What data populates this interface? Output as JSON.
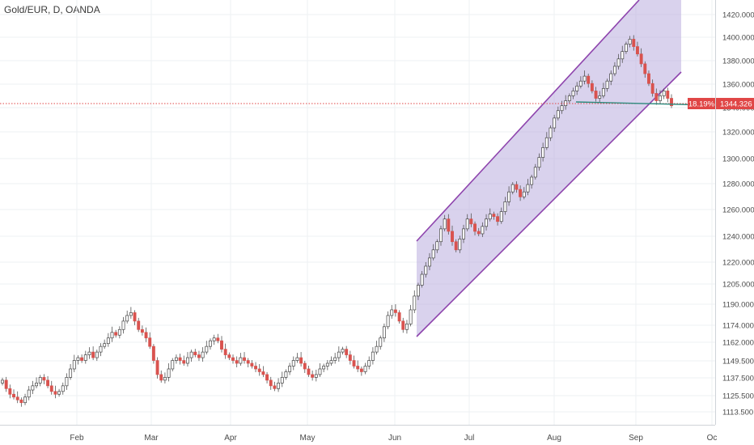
{
  "header": {
    "title": "Gold/EUR, D, OANDA"
  },
  "colors": {
    "up": "#26a69a",
    "down": "#d9534f",
    "channel_fill": "#b3a6dc",
    "channel_line": "#8e44ad",
    "price_line": "#e04646",
    "support_line": "#2e8b7e",
    "grid": "#eef0f3"
  },
  "chart_data": {
    "type": "candlestick",
    "symbol": "Gold/EUR",
    "interval": "D",
    "source": "OANDA",
    "ylim": [
      1105,
      1428
    ],
    "y_ticks": [
      "1420.000",
      "1400.000",
      "1380.000",
      "1360.000",
      "1340.000",
      "1320.000",
      "1300.000",
      "1280.000",
      "1260.000",
      "1240.000",
      "1220.000",
      "1205.000",
      "1190.000",
      "1174.000",
      "1162.000",
      "1149.500",
      "1137.500",
      "1125.500",
      "1113.500"
    ],
    "x_ticks": [
      "Feb",
      "Mar",
      "Apr",
      "May",
      "Jun",
      "Jul",
      "Aug",
      "Sep",
      "Oc"
    ],
    "last_price": "1344.326",
    "last_price_value": 1344.3,
    "last_change_label": "18.19%",
    "candles_close": [
      1136,
      1130,
      1126,
      1124,
      1122,
      1120,
      1124,
      1129,
      1132,
      1134,
      1138,
      1136,
      1132,
      1128,
      1126,
      1128,
      1132,
      1138,
      1144,
      1150,
      1152,
      1150,
      1154,
      1156,
      1152,
      1156,
      1160,
      1162,
      1166,
      1170,
      1168,
      1172,
      1178,
      1182,
      1184,
      1178,
      1172,
      1170,
      1166,
      1160,
      1150,
      1140,
      1136,
      1138,
      1144,
      1150,
      1152,
      1150,
      1148,
      1152,
      1156,
      1154,
      1152,
      1156,
      1160,
      1164,
      1166,
      1164,
      1158,
      1154,
      1152,
      1150,
      1148,
      1152,
      1150,
      1148,
      1146,
      1144,
      1142,
      1140,
      1136,
      1132,
      1130,
      1134,
      1138,
      1142,
      1146,
      1150,
      1152,
      1148,
      1144,
      1140,
      1138,
      1140,
      1144,
      1146,
      1148,
      1150,
      1152,
      1156,
      1158,
      1154,
      1150,
      1146,
      1144,
      1142,
      1146,
      1150,
      1156,
      1160,
      1166,
      1174,
      1182,
      1186,
      1184,
      1178,
      1172,
      1176,
      1186,
      1196,
      1204,
      1212,
      1218,
      1224,
      1230,
      1236,
      1246,
      1254,
      1244,
      1236,
      1230,
      1238,
      1246,
      1254,
      1250,
      1244,
      1242,
      1248,
      1254,
      1258,
      1256,
      1252,
      1260,
      1268,
      1276,
      1282,
      1278,
      1272,
      1276,
      1282,
      1288,
      1296,
      1304,
      1312,
      1320,
      1328,
      1336,
      1342,
      1346,
      1350,
      1354,
      1358,
      1362,
      1366,
      1370,
      1364,
      1358,
      1352,
      1354,
      1360,
      1366,
      1372,
      1378,
      1384,
      1390,
      1396,
      1400,
      1394,
      1388,
      1380,
      1372,
      1364,
      1356,
      1350,
      1354,
      1358,
      1352,
      1346
    ]
  }
}
